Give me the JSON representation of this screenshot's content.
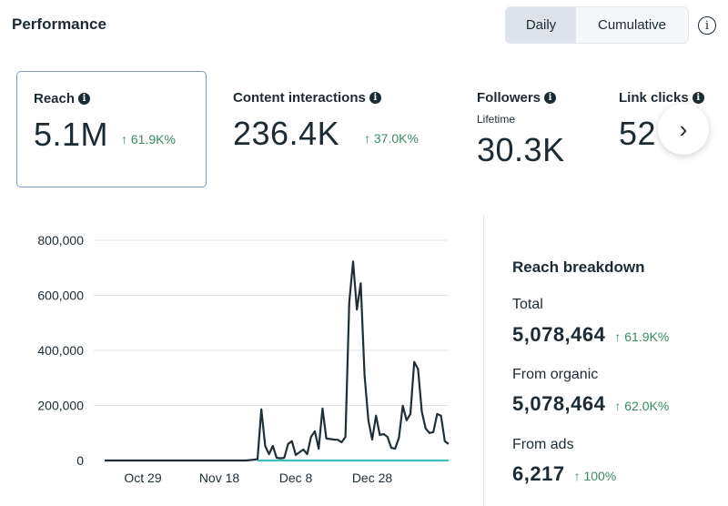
{
  "header": {
    "title": "Performance",
    "toggle": {
      "options": [
        "Daily",
        "Cumulative"
      ],
      "selected": "Daily"
    },
    "info_icon": "info-circle-icon"
  },
  "cards": [
    {
      "label": "Reach",
      "value": "5.1M",
      "delta": "↑ 61.9K%",
      "selected": true
    },
    {
      "label": "Content interactions",
      "value": "236.4K",
      "delta": "↑ 37.0K%"
    },
    {
      "label": "Followers",
      "sublabel": "Lifetime",
      "value": "30.3K"
    },
    {
      "label": "Link clicks",
      "value": "52"
    }
  ],
  "next_icon": "chevron-right-icon",
  "breakdown": {
    "title": "Reach breakdown",
    "rows": [
      {
        "label": "Total",
        "value": "5,078,464",
        "delta": "↑ 61.9K%"
      },
      {
        "label": "From organic",
        "value": "5,078,464",
        "delta": "↑ 62.0K%"
      },
      {
        "label": "From ads",
        "value": "6,217",
        "delta": "↑ 100%"
      }
    ]
  },
  "colors": {
    "organic": "#1f2f38",
    "ads": "#3cc0b8",
    "delta": "#3b8a64",
    "selected_border": "#7b9cc0"
  },
  "chart_data": {
    "type": "line",
    "x_range": [
      "Oct 19",
      "Jan 17"
    ],
    "ylim": [
      0,
      800000
    ],
    "y_ticks": [
      0,
      200000,
      400000,
      600000,
      800000
    ],
    "y_tick_labels": [
      "0",
      "200,000",
      "400,000",
      "600,000",
      "800,000"
    ],
    "x_ticks": [
      "Oct 29",
      "Nov 18",
      "Dec 8",
      "Dec 28"
    ],
    "grid": true,
    "series": [
      {
        "color": "#1f2f38",
        "points": [
          [
            "Oct 19",
            0
          ],
          [
            "Nov 25",
            0
          ],
          [
            "Nov 27",
            3000
          ],
          [
            "Nov 28",
            5000
          ],
          [
            "Nov 29",
            186000
          ],
          [
            "Nov 30",
            53000
          ],
          [
            "Dec 1",
            23000
          ],
          [
            "Dec 2",
            53000
          ],
          [
            "Dec 3",
            10000
          ],
          [
            "Dec 4",
            8000
          ],
          [
            "Dec 5",
            10000
          ],
          [
            "Dec 6",
            60000
          ],
          [
            "Dec 7",
            70000
          ],
          [
            "Dec 8",
            20000
          ],
          [
            "Dec 9",
            30000
          ],
          [
            "Dec 10",
            40000
          ],
          [
            "Dec 11",
            23000
          ],
          [
            "Dec 12",
            86000
          ],
          [
            "Dec 13",
            106000
          ],
          [
            "Dec 14",
            43000
          ],
          [
            "Dec 15",
            189000
          ],
          [
            "Dec 16",
            80000
          ],
          [
            "Dec 17",
            78000
          ],
          [
            "Dec 18",
            76000
          ],
          [
            "Dec 19",
            75000
          ],
          [
            "Dec 20",
            66000
          ],
          [
            "Dec 21",
            86000
          ],
          [
            "Dec 22",
            574000
          ],
          [
            "Dec 23",
            723000
          ],
          [
            "Dec 24",
            548000
          ],
          [
            "Dec 25",
            644000
          ],
          [
            "Dec 26",
            310000
          ],
          [
            "Dec 27",
            146000
          ],
          [
            "Dec 28",
            76000
          ],
          [
            "Dec 29",
            163000
          ],
          [
            "Dec 30",
            93000
          ],
          [
            "Dec 31",
            96000
          ],
          [
            "Jan 1",
            86000
          ],
          [
            "Jan 2",
            46000
          ],
          [
            "Jan 3",
            43000
          ],
          [
            "Jan 4",
            83000
          ],
          [
            "Jan 5",
            199000
          ],
          [
            "Jan 6",
            146000
          ],
          [
            "Jan 7",
            169000
          ],
          [
            "Jan 8",
            358000
          ],
          [
            "Jan 9",
            332000
          ],
          [
            "Jan 10",
            176000
          ],
          [
            "Jan 11",
            116000
          ],
          [
            "Jan 12",
            100000
          ],
          [
            "Jan 13",
            103000
          ],
          [
            "Jan 14",
            169000
          ],
          [
            "Jan 15",
            163000
          ],
          [
            "Jan 16",
            70000
          ],
          [
            "Jan 17",
            60000
          ]
        ]
      },
      {
        "color": "#3cc0b8",
        "points": [
          [
            "Nov 28",
            0
          ],
          [
            "Jan 17",
            0
          ]
        ]
      }
    ]
  }
}
